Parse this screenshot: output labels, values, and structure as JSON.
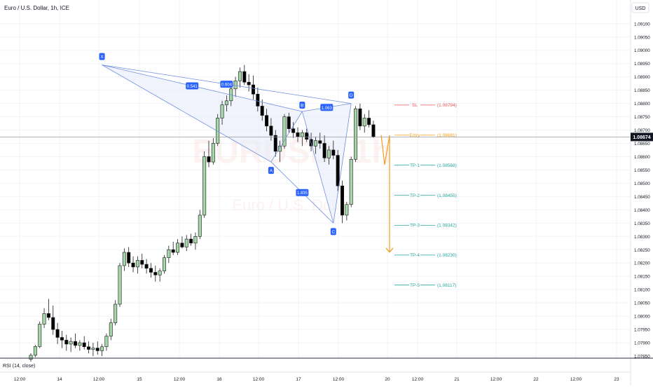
{
  "header": {
    "symbol_title": "Euro / U.S. Dollar, 1h, ICE",
    "currency_button": "USD"
  },
  "watermark": {
    "symbol": "EURUSD, 1h",
    "description": "Euro / U.S. Dollar"
  },
  "rsi_panel": {
    "label": "RSI (14, close)"
  },
  "colors": {
    "up_candle": "#a5d6a7",
    "down_candle": "#000000",
    "pattern_line": "#6f8fe0",
    "pattern_fill": "#e8ecfa",
    "label_bg": "#2962ff",
    "sl": "#ef5350",
    "entry": "#f59c1a",
    "tp": "#26a69a",
    "arrow": "#f59c1a",
    "grid": "#f0f3fa",
    "axis_text": "#131722",
    "last_price_bg": "#131722"
  },
  "chart_data": {
    "type": "candlestick",
    "y_axis": {
      "ticks": [
        "1.09100",
        "1.09050",
        "1.09000",
        "1.08950",
        "1.08900",
        "1.08850",
        "1.08800",
        "1.08750",
        "1.08700",
        "1.08650",
        "1.08600",
        "1.08550",
        "1.08500",
        "1.08450",
        "1.08400",
        "1.08350",
        "1.08300",
        "1.08250",
        "1.08200",
        "1.08150",
        "1.08100",
        "1.08050",
        "1.08000",
        "1.07950",
        "1.07900",
        "1.07850"
      ],
      "last_price": "1.08674",
      "range": [
        1.07845,
        1.0912
      ]
    },
    "x_axis": {
      "ticks": [
        "12:00",
        "14",
        "12:00",
        "15",
        "12:00",
        "16",
        "12:00",
        "17",
        "12:00",
        "20",
        "12:00",
        "21",
        "12:00",
        "22",
        "12:00",
        "23"
      ]
    },
    "candles": [
      [
        1.07838,
        1.07861,
        1.07829,
        1.07853
      ],
      [
        1.07853,
        1.07892,
        1.07846,
        1.07886
      ],
      [
        1.07886,
        1.0798,
        1.0788,
        1.0797
      ],
      [
        1.0797,
        1.0803,
        1.07955,
        1.0801
      ],
      [
        1.0801,
        1.08065,
        1.07985,
        1.07995
      ],
      [
        1.07995,
        1.0804,
        1.0793,
        1.0795
      ],
      [
        1.0795,
        1.07975,
        1.07895,
        1.0792
      ],
      [
        1.0792,
        1.07945,
        1.0788,
        1.0791
      ],
      [
        1.0791,
        1.0793,
        1.0787,
        1.07895
      ],
      [
        1.07895,
        1.0792,
        1.07865,
        1.07905
      ],
      [
        1.07905,
        1.07935,
        1.0788,
        1.0789
      ],
      [
        1.0789,
        1.0791,
        1.0787,
        1.079
      ],
      [
        1.079,
        1.07925,
        1.07875,
        1.07885
      ],
      [
        1.07885,
        1.07905,
        1.0786,
        1.07875
      ],
      [
        1.07875,
        1.079,
        1.0785,
        1.0788
      ],
      [
        1.0788,
        1.07905,
        1.07855,
        1.0787
      ],
      [
        1.0787,
        1.07895,
        1.0785,
        1.07885
      ],
      [
        1.07885,
        1.07935,
        1.0787,
        1.07925
      ],
      [
        1.07925,
        1.0799,
        1.0791,
        1.07975
      ],
      [
        1.07975,
        1.0806,
        1.07965,
        1.08045
      ],
      [
        1.08045,
        1.082,
        1.08035,
        1.0819
      ],
      [
        1.0819,
        1.08255,
        1.0817,
        1.0824
      ],
      [
        1.0824,
        1.0826,
        1.08185,
        1.082
      ],
      [
        1.082,
        1.08225,
        1.08165,
        1.08185
      ],
      [
        1.08185,
        1.08225,
        1.0816,
        1.0821
      ],
      [
        1.0821,
        1.08235,
        1.0818,
        1.08195
      ],
      [
        1.08195,
        1.08215,
        1.0816,
        1.0818
      ],
      [
        1.0818,
        1.082,
        1.08145,
        1.08165
      ],
      [
        1.08165,
        1.0819,
        1.0813,
        1.08155
      ],
      [
        1.08155,
        1.0818,
        1.0813,
        1.0817
      ],
      [
        1.0817,
        1.0823,
        1.0816,
        1.0822
      ],
      [
        1.0822,
        1.08265,
        1.082,
        1.0825
      ],
      [
        1.0825,
        1.0828,
        1.0823,
        1.0824
      ],
      [
        1.0824,
        1.0829,
        1.0823,
        1.08275
      ],
      [
        1.08275,
        1.083,
        1.08255,
        1.0826
      ],
      [
        1.0826,
        1.08305,
        1.08245,
        1.0829
      ],
      [
        1.0829,
        1.0831,
        1.08265,
        1.08275
      ],
      [
        1.08275,
        1.08315,
        1.0825,
        1.083
      ],
      [
        1.083,
        1.084,
        1.0829,
        1.0838
      ],
      [
        1.0838,
        1.0862,
        1.0837,
        1.086
      ],
      [
        1.086,
        1.0866,
        1.0856,
        1.0858
      ],
      [
        1.0858,
        1.0867,
        1.0857,
        1.0865
      ],
      [
        1.0865,
        1.0876,
        1.0864,
        1.08745
      ],
      [
        1.08745,
        1.0881,
        1.0872,
        1.08795
      ],
      [
        1.08795,
        1.0883,
        1.0877,
        1.0881
      ],
      [
        1.0881,
        1.0887,
        1.0879,
        1.08855
      ],
      [
        1.08855,
        1.089,
        1.08825,
        1.08885
      ],
      [
        1.08885,
        1.08935,
        1.0886,
        1.0892
      ],
      [
        1.0892,
        1.08945,
        1.0887,
        1.0888
      ],
      [
        1.0888,
        1.0891,
        1.08845,
        1.0887
      ],
      [
        1.0887,
        1.08905,
        1.08815,
        1.08835
      ],
      [
        1.08835,
        1.0886,
        1.0877,
        1.0879
      ],
      [
        1.0879,
        1.08815,
        1.08735,
        1.08755
      ],
      [
        1.08755,
        1.0878,
        1.08695,
        1.08715
      ],
      [
        1.08715,
        1.08745,
        1.0866,
        1.0868
      ],
      [
        1.0868,
        1.087,
        1.086,
        1.0862
      ],
      [
        1.0862,
        1.0866,
        1.0858,
        1.0864
      ],
      [
        1.0864,
        1.0876,
        1.0863,
        1.0875
      ],
      [
        1.0875,
        1.08765,
        1.0869,
        1.08705
      ],
      [
        1.08705,
        1.0873,
        1.0867,
        1.0869
      ],
      [
        1.0869,
        1.0871,
        1.08655,
        1.08675
      ],
      [
        1.08675,
        1.087,
        1.0864,
        1.0869
      ],
      [
        1.0869,
        1.08705,
        1.08655,
        1.08665
      ],
      [
        1.08665,
        1.0869,
        1.0862,
        1.0864
      ],
      [
        1.0864,
        1.08675,
        1.0861,
        1.0866
      ],
      [
        1.0866,
        1.0869,
        1.0863,
        1.0865
      ],
      [
        1.0865,
        1.0868,
        1.0858,
        1.08595
      ],
      [
        1.08595,
        1.0864,
        1.0857,
        1.08625
      ],
      [
        1.08625,
        1.0866,
        1.0859,
        1.08605
      ],
      [
        1.08605,
        1.08625,
        1.0847,
        1.0849
      ],
      [
        1.0849,
        1.0851,
        1.0835,
        1.0838
      ],
      [
        1.0838,
        1.0843,
        1.0836,
        1.0842
      ],
      [
        1.0842,
        1.086,
        1.0841,
        1.0859
      ],
      [
        1.0859,
        1.0879,
        1.0858,
        1.0878
      ],
      [
        1.0878,
        1.088,
        1.087,
        1.08715
      ],
      [
        1.08715,
        1.0876,
        1.0869,
        1.08745
      ],
      [
        1.08745,
        1.08775,
        1.0871,
        1.0872
      ],
      [
        1.0872,
        1.08735,
        1.0867,
        1.08674
      ]
    ],
    "harmonic_pattern": {
      "points": {
        "X": [
          16,
          1.08945
        ],
        "A": [
          54,
          1.0858
        ],
        "B": [
          61,
          1.0877
        ],
        "C": [
          68,
          1.0835
        ],
        "D": [
          72,
          1.088
        ]
      },
      "ratios": [
        {
          "label": "0.541",
          "between": "XB"
        },
        {
          "label": "0.604",
          "between": "XD"
        },
        {
          "label": "1.063",
          "between": "BD"
        },
        {
          "label": "1.835",
          "between": "AC"
        }
      ],
      "labels": [
        "X",
        "A",
        "B",
        "C",
        "D"
      ]
    },
    "trade_levels": [
      {
        "name": "SL",
        "price": 1.08794,
        "price_label": "(1.08794)",
        "kind": "sl"
      },
      {
        "name": "Entry",
        "price": 1.08681,
        "price_label": "(1.08681)",
        "kind": "entry"
      },
      {
        "name": "TP-1",
        "price": 1.08568,
        "price_label": "(1.08568)",
        "kind": "tp"
      },
      {
        "name": "TP-2",
        "price": 1.08455,
        "price_label": "(1.08455)",
        "kind": "tp"
      },
      {
        "name": "TP-3",
        "price": 1.08342,
        "price_label": "(1.08342)",
        "kind": "tp"
      },
      {
        "name": "TP-4",
        "price": 1.0823,
        "price_label": "(1.08230)",
        "kind": "tp"
      },
      {
        "name": "TP-5",
        "price": 1.08117,
        "price_label": "(1.08117)",
        "kind": "tp"
      }
    ],
    "projection": {
      "from": [
        1.08681,
        1.0857,
        1.0868
      ],
      "arrow_to": 1.0823
    }
  }
}
